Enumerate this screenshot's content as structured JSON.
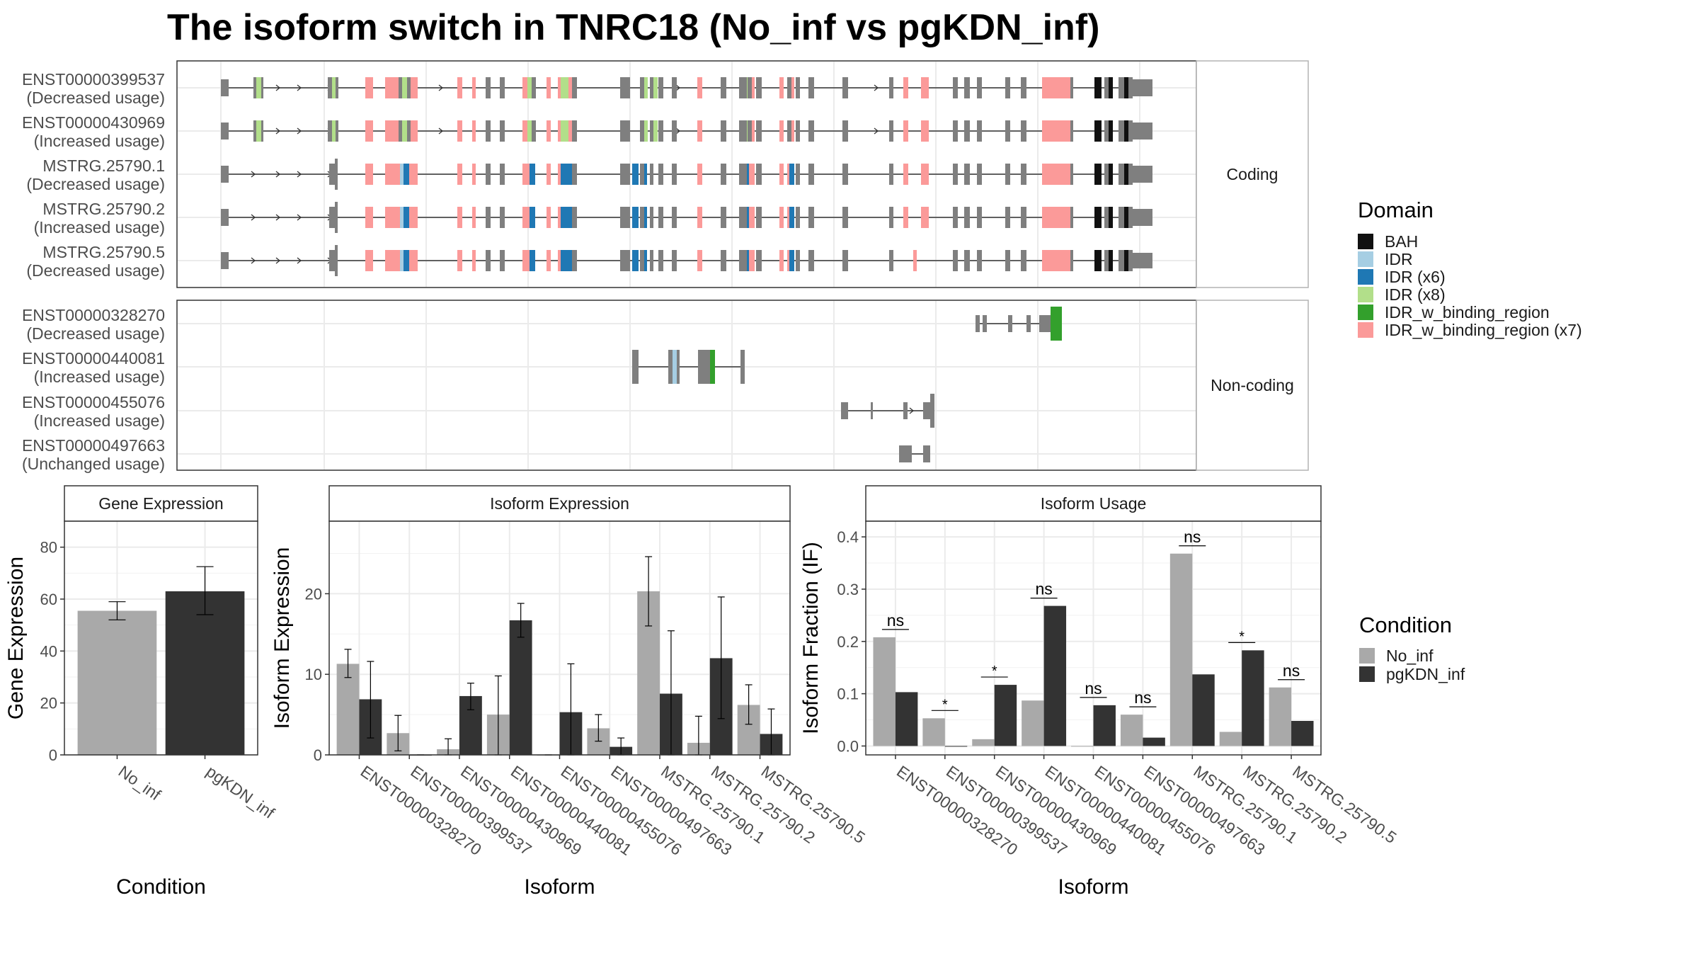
{
  "title": "The isoform switch in TNRC18 (No_inf vs pgKDN_inf)",
  "structure": {
    "facets": [
      "Coding",
      "Non-coding"
    ],
    "coding_isoforms": [
      {
        "id": "ENST00000399537",
        "usage": "(Decreased usage)"
      },
      {
        "id": "ENST00000430969",
        "usage": "(Increased usage)"
      },
      {
        "id": "MSTRG.25790.1",
        "usage": "(Decreased usage)"
      },
      {
        "id": "MSTRG.25790.2",
        "usage": "(Increased usage)"
      },
      {
        "id": "MSTRG.25790.5",
        "usage": "(Decreased usage)"
      }
    ],
    "noncoding_isoforms": [
      {
        "id": "ENST00000328270",
        "usage": "(Decreased usage)"
      },
      {
        "id": "ENST00000440081",
        "usage": "(Increased usage)"
      },
      {
        "id": "ENST00000455076",
        "usage": "(Increased usage)"
      },
      {
        "id": "ENST00000497663",
        "usage": "(Unchanged usage)"
      }
    ]
  },
  "domain_legend": {
    "title": "Domain",
    "items": [
      {
        "label": "BAH",
        "color": "#111111"
      },
      {
        "label": "IDR",
        "color": "#a6cee3"
      },
      {
        "label": "IDR (x6)",
        "color": "#1f78b4"
      },
      {
        "label": "IDR (x8)",
        "color": "#b2df8a"
      },
      {
        "label": "IDR_w_binding_region",
        "color": "#33a02c"
      },
      {
        "label": "IDR_w_binding_region (x7)",
        "color": "#fb9a99"
      }
    ]
  },
  "condition_legend": {
    "title": "Condition",
    "items": [
      {
        "label": "No_inf",
        "color": "#a9a9a9"
      },
      {
        "label": "pgKDN_inf",
        "color": "#333333"
      }
    ]
  },
  "chart_data": [
    {
      "type": "bar",
      "title": "Gene Expression",
      "xlabel": "Condition",
      "ylabel": "Gene Expression",
      "ylim": [
        0,
        90
      ],
      "yticks": [
        0,
        20,
        40,
        60,
        80
      ],
      "categories": [
        "No_inf",
        "pgKDN_inf"
      ],
      "values": [
        55.5,
        63
      ],
      "errors": [
        [
          52,
          59
        ],
        [
          54,
          72.5
        ]
      ]
    },
    {
      "type": "bar",
      "title": "Isoform Expression",
      "xlabel": "Isoform",
      "ylabel": "Isoform Expression",
      "ylim": [
        0,
        29
      ],
      "yticks": [
        0,
        10,
        20
      ],
      "categories": [
        "ENST00000328270",
        "ENST00000399537",
        "ENST00000430969",
        "ENST00000440081",
        "ENST00000455076",
        "ENST00000497663",
        "MSTRG.25790.1",
        "MSTRG.25790.2",
        "MSTRG.25790.5"
      ],
      "series": [
        {
          "name": "No_inf",
          "values": [
            11.3,
            2.7,
            0.7,
            5,
            0,
            3.3,
            20.3,
            1.5,
            6.2
          ],
          "errors": [
            [
              9.6,
              13.1
            ],
            [
              0.5,
              4.9
            ],
            [
              0,
              2
            ],
            [
              0,
              9.8
            ],
            [
              0,
              0
            ],
            [
              1.7,
              5
            ],
            [
              16,
              24.6
            ],
            [
              0,
              4.8
            ],
            [
              3.8,
              8.7
            ]
          ]
        },
        {
          "name": "pgKDN_inf",
          "values": [
            6.9,
            0,
            7.3,
            16.7,
            5.3,
            1,
            7.6,
            12,
            2.6
          ],
          "errors": [
            [
              2.1,
              11.6
            ],
            [
              0,
              0
            ],
            [
              5.6,
              8.9
            ],
            [
              14.6,
              18.8
            ],
            [
              0,
              11.3
            ],
            [
              0,
              2.1
            ],
            [
              0,
              15.4
            ],
            [
              4.5,
              19.6
            ],
            [
              0,
              5.7
            ]
          ]
        }
      ]
    },
    {
      "type": "bar",
      "title": "Isoform Usage",
      "xlabel": "Isoform",
      "ylabel": "Isoform Fraction (IF)",
      "ylim": [
        -0.017,
        0.43
      ],
      "yticks": [
        0.0,
        0.1,
        0.2,
        0.3,
        0.4
      ],
      "ytick_labels": [
        "0.0",
        "0.1",
        "0.2",
        "0.3",
        "0.4"
      ],
      "categories": [
        "ENST00000328270",
        "ENST00000399537",
        "ENST00000430969",
        "ENST00000440081",
        "ENST00000455076",
        "ENST00000497663",
        "MSTRG.25790.1",
        "MSTRG.25790.2",
        "MSTRG.25790.5"
      ],
      "series": [
        {
          "name": "No_inf",
          "values": [
            0.208,
            0.053,
            0.013,
            0.087,
            0,
            0.06,
            0.368,
            0.027,
            0.112
          ]
        },
        {
          "name": "pgKDN_inf",
          "values": [
            0.103,
            0,
            0.117,
            0.268,
            0.078,
            0.016,
            0.137,
            0.183,
            0.048
          ]
        }
      ],
      "significance": [
        "ns",
        "*",
        "*",
        "ns",
        "ns",
        "ns",
        "ns",
        "*",
        "ns"
      ]
    }
  ]
}
